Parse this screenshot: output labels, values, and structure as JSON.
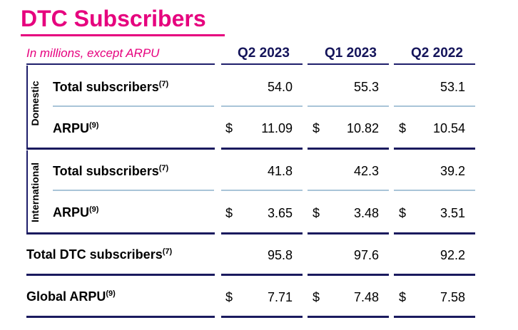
{
  "title": "DTC Subscribers",
  "subtitle": "In millions, except ARPU",
  "columns": [
    "Q2 2023",
    "Q1 2023",
    "Q2 2022"
  ],
  "groups": {
    "domestic": "Domestic",
    "international": "International"
  },
  "rows": {
    "dom_subs": {
      "label": "Total subscribers",
      "note": "(7)",
      "values": [
        "54.0",
        "55.3",
        "53.1"
      ]
    },
    "dom_arpu": {
      "label": "ARPU",
      "note": "(9)",
      "values": [
        "11.09",
        "10.82",
        "10.54"
      ]
    },
    "intl_subs": {
      "label": "Total subscribers",
      "note": "(7)",
      "values": [
        "41.8",
        "42.3",
        "39.2"
      ]
    },
    "intl_arpu": {
      "label": "ARPU",
      "note": "(9)",
      "values": [
        "3.65",
        "3.48",
        "3.51"
      ]
    },
    "total_subs": {
      "label": "Total DTC subscribers",
      "note": "(7)",
      "values": [
        "95.8",
        "97.6",
        "92.2"
      ]
    },
    "global_arpu": {
      "label": "Global ARPU",
      "note": "(9)",
      "values": [
        "7.71",
        "7.48",
        "7.58"
      ]
    }
  },
  "currency_symbol": "$"
}
